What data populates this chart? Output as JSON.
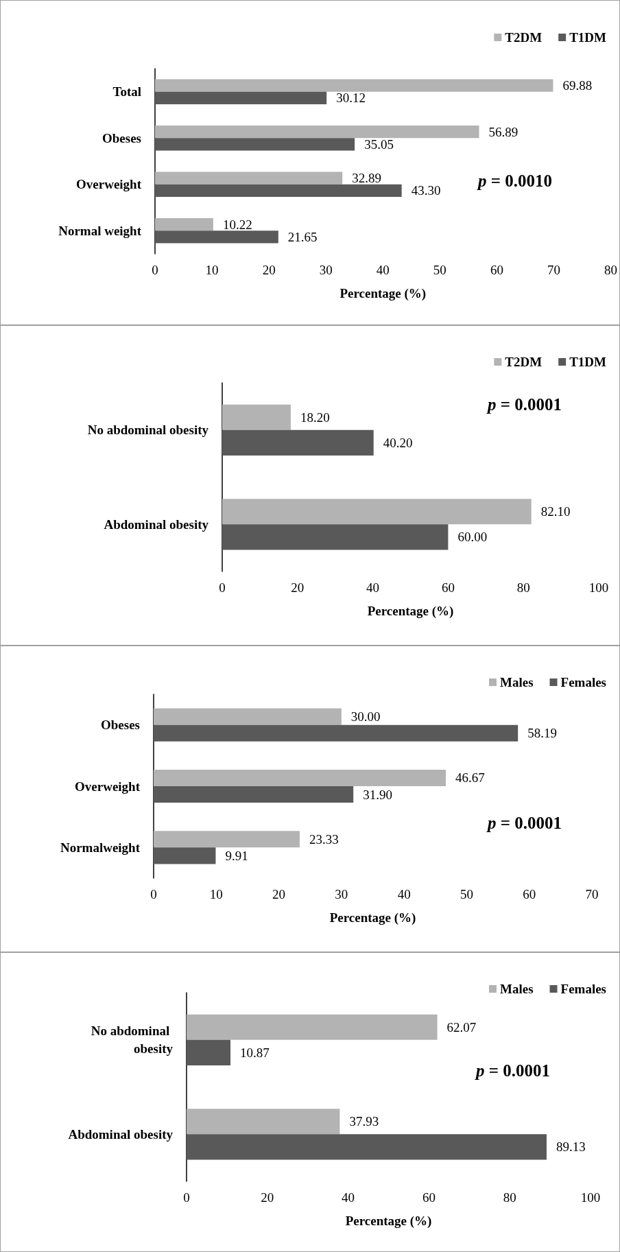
{
  "chart_data": [
    {
      "type": "bar",
      "orientation": "horizontal",
      "categories": [
        "Total",
        "Obeses",
        "Overweight",
        "Normal weight"
      ],
      "series": [
        {
          "name": "T2DM",
          "color": "#b3b3b3",
          "values": [
            69.88,
            56.89,
            32.89,
            10.22
          ],
          "value_labels": [
            "69.88",
            "56.89",
            "32.89",
            "10.22"
          ]
        },
        {
          "name": "T1DM",
          "color": "#595959",
          "values": [
            30.12,
            35.05,
            43.3,
            21.65
          ],
          "value_labels": [
            "30.12",
            "35.05",
            "43.30",
            "21.65"
          ]
        }
      ],
      "xlabel": "Percentage (%)",
      "xlim": [
        0,
        80
      ],
      "xticks": [
        0,
        10,
        20,
        30,
        40,
        50,
        60,
        70,
        80
      ],
      "legend": "top right",
      "annotations": [
        "p = 0.0010"
      ]
    },
    {
      "type": "bar",
      "orientation": "horizontal",
      "categories": [
        "No abdominal obesity",
        "Abdominal obesity"
      ],
      "series": [
        {
          "name": "T2DM",
          "color": "#b3b3b3",
          "values": [
            18.2,
            82.1
          ],
          "value_labels": [
            "18.20",
            "82.10"
          ]
        },
        {
          "name": "T1DM",
          "color": "#595959",
          "values": [
            40.2,
            60
          ],
          "value_labels": [
            "40.20",
            "60.00"
          ]
        }
      ],
      "xlabel": "Percentage (%)",
      "xlim": [
        0,
        100
      ],
      "xticks": [
        0,
        20,
        40,
        60,
        80,
        100
      ],
      "legend": "top right",
      "annotations": [
        "p = 0.0001"
      ]
    },
    {
      "type": "bar",
      "orientation": "horizontal",
      "categories": [
        "Obeses",
        "Overweight",
        "Normalweight"
      ],
      "series": [
        {
          "name": "Males",
          "color": "#b3b3b3",
          "values": [
            30,
            46.67,
            23.33
          ],
          "value_labels": [
            "30.00",
            "46.67",
            "23.33"
          ]
        },
        {
          "name": "Females",
          "color": "#595959",
          "values": [
            58.19,
            31.9,
            9.91
          ],
          "value_labels": [
            "58.19",
            "31.90",
            "9.91"
          ]
        }
      ],
      "xlabel": "Percentage (%)",
      "xlim": [
        0,
        70
      ],
      "xticks": [
        0,
        10,
        20,
        30,
        40,
        50,
        60,
        70
      ],
      "legend": "top right",
      "annotations": [
        "p = 0.0001"
      ]
    },
    {
      "type": "bar",
      "orientation": "horizontal",
      "categories": [
        "No abdominal obesity",
        "Abdominal obesity"
      ],
      "series": [
        {
          "name": "Males",
          "color": "#b3b3b3",
          "values": [
            62.07,
            37.93
          ],
          "value_labels": [
            "62.07",
            "37.93"
          ]
        },
        {
          "name": "Females",
          "color": "#595959",
          "values": [
            10.87,
            89.13
          ],
          "value_labels": [
            "10.87",
            "89.13"
          ]
        }
      ],
      "xlabel": "Percentage (%)",
      "xlim": [
        0,
        100
      ],
      "xticks": [
        0,
        20,
        40,
        60,
        80,
        100
      ],
      "legend": "top right",
      "annotations": [
        "p = 0.0001"
      ]
    }
  ]
}
